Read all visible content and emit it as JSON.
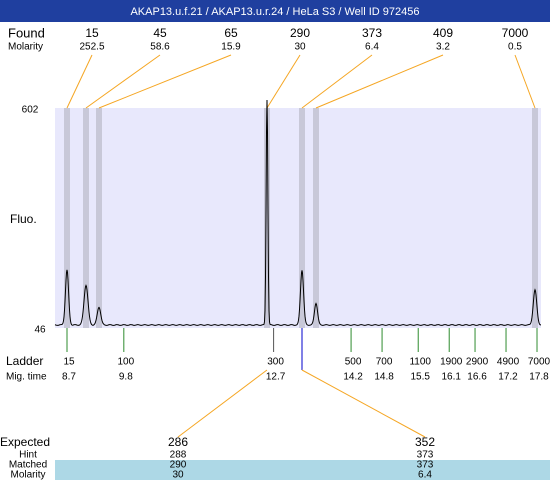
{
  "title": "AKAP13.u.f.21 / AKAP13.u.r.24 / HeLa S3 / Well ID 972456",
  "found": {
    "label": "Found",
    "molarity_label": "Molarity",
    "peaks": [
      {
        "size": 15,
        "molarity": 252.5
      },
      {
        "size": 45,
        "molarity": 58.6
      },
      {
        "size": 65,
        "molarity": 15.9
      },
      {
        "size": 290,
        "molarity": 30
      },
      {
        "size": 373,
        "molarity": 6.4
      },
      {
        "size": 409,
        "molarity": 3.2
      },
      {
        "size": 7000,
        "molarity": 0.5
      }
    ]
  },
  "plot": {
    "y_label": "Fluo.",
    "y_max": 602,
    "y_min": 46
  },
  "ladder": {
    "label": "Ladder",
    "mig_label": "Mig. time",
    "sizes": [
      15,
      100,
      300,
      500,
      700,
      1100,
      1900,
      2900,
      4900,
      7000
    ],
    "times": [
      8.7,
      9.8,
      12.7,
      14.2,
      14.8,
      15.5,
      16.1,
      16.6,
      17.2,
      17.8
    ]
  },
  "expected": {
    "label": "Expected",
    "hint_label": "Hint",
    "matched_label": "Matched",
    "molarity_label": "Molarity",
    "items": [
      {
        "expected": 286,
        "hint": 288,
        "matched": 290,
        "molarity": 30
      },
      {
        "expected": 352,
        "hint": 373,
        "matched": 373,
        "molarity": 6.4
      }
    ]
  }
}
